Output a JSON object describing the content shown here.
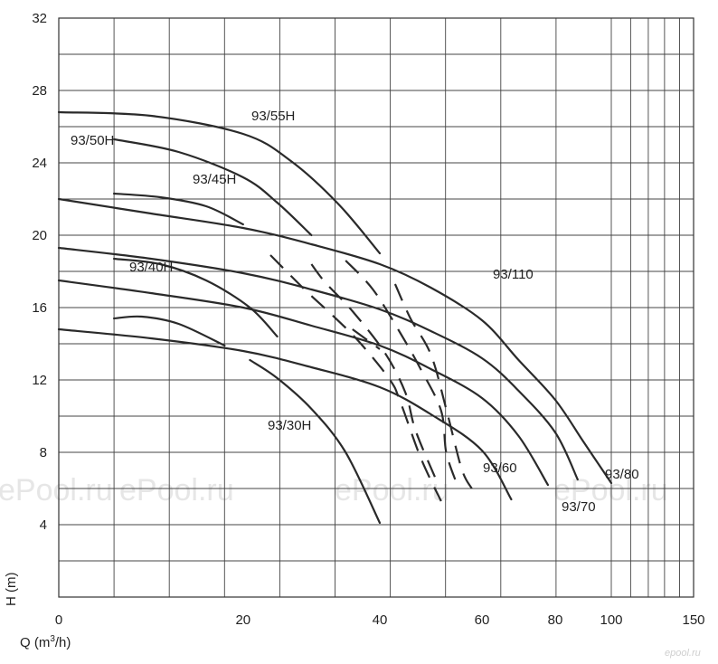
{
  "chart_data": {
    "type": "line",
    "xlabel_base": "Q (m",
    "xlabel_sup": "3",
    "xlabel_end": "/h)",
    "ylabel": "H (m)",
    "x_ticks": [
      "0",
      "20",
      "40",
      "60",
      "80",
      "100",
      "150"
    ],
    "y_ticks": [
      "4",
      "8",
      "12",
      "16",
      "20",
      "24",
      "28",
      "32"
    ],
    "ylim": [
      0,
      32
    ],
    "grid": true,
    "watermarks": [
      "ePool.ru",
      "ePool.ru",
      "ePool.ru",
      "ePool.ru"
    ],
    "logo": "epool.ru",
    "series": [
      {
        "name": "93/55H",
        "points": [
          [
            0,
            26.8
          ],
          [
            10,
            26.6
          ],
          [
            20,
            25.6
          ],
          [
            27,
            24.1
          ],
          [
            34,
            21.7
          ],
          [
            40,
            19.0
          ]
        ]
      },
      {
        "name": "93/50H",
        "points": [
          [
            6,
            25.3
          ],
          [
            13,
            24.6
          ],
          [
            20,
            23.2
          ],
          [
            25,
            21.8
          ],
          [
            30,
            20.0
          ]
        ]
      },
      {
        "name": "93/45H",
        "points": [
          [
            6,
            22.3
          ],
          [
            11,
            22.1
          ],
          [
            16,
            21.6
          ],
          [
            20,
            20.6
          ]
        ]
      },
      {
        "name": "93/110",
        "points": [
          [
            0,
            22.0
          ],
          [
            10,
            21.2
          ],
          [
            20,
            20.4
          ],
          [
            30,
            19.5
          ],
          [
            40,
            18.4
          ],
          [
            50,
            17.1
          ],
          [
            60,
            15.3
          ],
          [
            70,
            13.1
          ],
          [
            80,
            10.9
          ],
          [
            90,
            8.6
          ],
          [
            100,
            6.3
          ]
        ]
      },
      {
        "name": "93/80",
        "points": [
          [
            0,
            19.3
          ],
          [
            10,
            18.7
          ],
          [
            20,
            17.9
          ],
          [
            30,
            17.0
          ],
          [
            40,
            15.9
          ],
          [
            50,
            14.7
          ],
          [
            60,
            13.2
          ],
          [
            70,
            11.4
          ],
          [
            80,
            9.1
          ],
          [
            88,
            6.5
          ]
        ]
      },
      {
        "name": "93/40H",
        "points": [
          [
            6,
            18.7
          ],
          [
            11,
            18.4
          ],
          [
            16,
            17.5
          ],
          [
            21,
            16.0
          ],
          [
            25,
            14.4
          ]
        ]
      },
      {
        "name": "93/70",
        "points": [
          [
            0,
            17.5
          ],
          [
            10,
            16.8
          ],
          [
            20,
            16.0
          ],
          [
            30,
            15.0
          ],
          [
            40,
            13.9
          ],
          [
            50,
            12.6
          ],
          [
            60,
            11.0
          ],
          [
            70,
            8.9
          ],
          [
            78,
            6.2
          ]
        ]
      },
      {
        "name": "93/60",
        "points": [
          [
            0,
            14.8
          ],
          [
            10,
            14.3
          ],
          [
            20,
            13.6
          ],
          [
            30,
            12.7
          ],
          [
            40,
            11.6
          ],
          [
            50,
            10.1
          ],
          [
            60,
            8.1
          ],
          [
            68,
            5.4
          ]
        ]
      },
      {
        "name": "",
        "points": [
          [
            6,
            15.4
          ],
          [
            9,
            15.5
          ],
          [
            13,
            15.1
          ],
          [
            18,
            13.9
          ]
        ]
      },
      {
        "name": "93/30H",
        "points": [
          [
            21,
            13.1
          ],
          [
            25,
            12.1
          ],
          [
            30,
            10.4
          ],
          [
            35,
            8.0
          ],
          [
            40,
            4.1
          ]
        ]
      }
    ],
    "dashed_lines": [
      [
        [
          24,
          18.9
        ],
        [
          29,
          17.0
        ],
        [
          33,
          15.6
        ],
        [
          37,
          14.1
        ],
        [
          42,
          12.0
        ],
        [
          44,
          10.8
        ],
        [
          48,
          7.7
        ],
        [
          52,
          5.3
        ]
      ],
      [
        [
          30,
          18.4
        ],
        [
          32,
          17.4
        ],
        [
          36,
          15.8
        ],
        [
          41,
          13.5
        ],
        [
          45,
          11.3
        ],
        [
          47,
          9.2
        ],
        [
          51,
          6.5
        ]
      ],
      [
        [
          35,
          18.6
        ],
        [
          39,
          17.0
        ],
        [
          44,
          14.6
        ],
        [
          48,
          12.6
        ],
        [
          52,
          10.3
        ],
        [
          53,
          8.0
        ],
        [
          55,
          6.3
        ]
      ],
      [
        [
          43,
          17.3
        ],
        [
          46,
          15.4
        ],
        [
          50,
          13.4
        ],
        [
          53,
          10.4
        ],
        [
          56,
          7.1
        ],
        [
          58,
          6.0
        ]
      ],
      [
        [
          36,
          14.8
        ],
        [
          40,
          13.7
        ]
      ]
    ]
  }
}
